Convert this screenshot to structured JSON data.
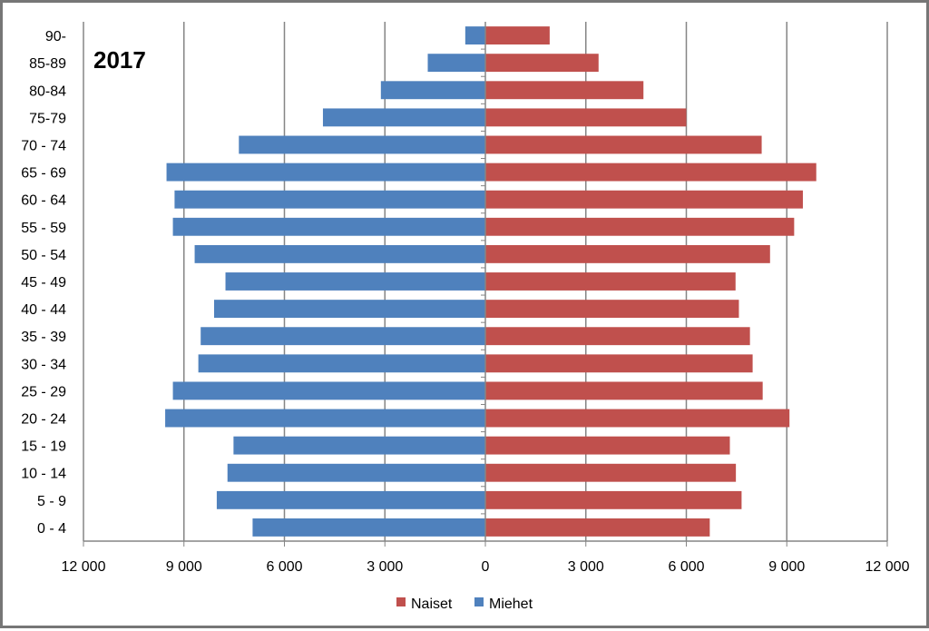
{
  "chart_data": {
    "type": "bar",
    "orientation": "horizontal",
    "title": "2017",
    "categories": [
      "0 - 4",
      "5 - 9",
      "10 - 14",
      "15 - 19",
      "20 - 24",
      "25 - 29",
      "30 - 34",
      "35 - 39",
      "40 - 44",
      "45 - 49",
      "50 - 54",
      "55 - 59",
      "60 - 64",
      "65 - 69",
      "70 - 74",
      "75-79",
      "80-84",
      "85-89",
      "90-"
    ],
    "series": [
      {
        "name": "Naiset",
        "color": "#C0504D",
        "values": [
          6700,
          7650,
          7480,
          7300,
          9080,
          8280,
          7980,
          7900,
          7570,
          7470,
          8500,
          9220,
          9480,
          9880,
          8250,
          6000,
          4720,
          3380,
          1920
        ]
      },
      {
        "name": "Miehet",
        "color": "#4F81BD",
        "values": [
          6950,
          8020,
          7700,
          7520,
          9560,
          9330,
          8570,
          8500,
          8100,
          7760,
          8680,
          9330,
          9280,
          9520,
          7360,
          4850,
          3120,
          1720,
          600
        ]
      }
    ],
    "xlim": [
      -12000,
      12000
    ],
    "xticks": [
      "12 000",
      "9 000",
      "6 000",
      "3 000",
      "0",
      "3 000",
      "6 000",
      "9 000",
      "12 000"
    ],
    "xlabel": "",
    "ylabel": "",
    "grid": true,
    "legend": "bottom-center"
  }
}
